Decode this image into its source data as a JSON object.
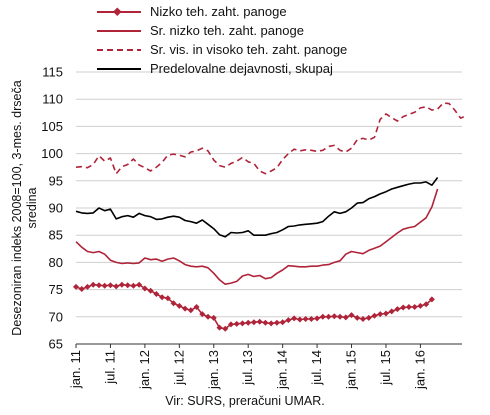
{
  "chart_data": {
    "type": "line",
    "ylabel": "Desezoniran indeks 2008=100, 3-mes. drseča sredina",
    "ylim": [
      65,
      115
    ],
    "yticks": [
      65,
      70,
      75,
      80,
      85,
      90,
      95,
      100,
      105,
      110,
      115
    ],
    "grid": "horizontal",
    "legend_position": "top",
    "x_tick_labels": [
      "jan. 11",
      "jul. 11",
      "jan. 12",
      "jul. 12",
      "jan. 13",
      "jul. 13",
      "jan. 14",
      "jul. 14",
      "jan. 15",
      "jul. 15",
      "jan. 16"
    ],
    "x_start": "jan. 11",
    "source": "Vir: SURS, preračuni UMAR.",
    "series": [
      {
        "name": "Nizko teh. zaht. panoge",
        "color": "#b0243a",
        "style": "solid-diamond",
        "values": [
          75.5,
          75.1,
          75.5,
          75.9,
          75.8,
          75.7,
          75.8,
          75.6,
          75.9,
          75.8,
          75.7,
          75.9,
          75.2,
          74.8,
          74.2,
          73.6,
          73.4,
          72.5,
          72.0,
          71.5,
          71.2,
          71.8,
          70.5,
          70.0,
          69.8,
          68.0,
          67.8,
          68.6,
          68.7,
          68.8,
          68.9,
          69.0,
          69.1,
          68.9,
          68.8,
          68.9,
          69.0,
          69.4,
          69.7,
          69.5,
          69.6,
          69.6,
          69.7,
          70.0,
          70.0,
          70.1,
          70.0,
          69.9,
          70.3,
          69.8,
          69.6,
          69.8,
          70.2,
          70.5,
          70.6,
          71.0,
          71.4,
          71.7,
          71.8,
          71.8,
          72.0,
          72.3,
          73.2
        ]
      },
      {
        "name": "Sr. nizko teh. zaht. panoge",
        "color": "#b0243a",
        "style": "solid",
        "values": [
          83.8,
          82.8,
          82.0,
          81.8,
          82.0,
          81.5,
          80.4,
          80.0,
          79.8,
          79.9,
          79.8,
          79.9,
          80.8,
          80.5,
          80.6,
          80.2,
          80.6,
          80.8,
          80.3,
          79.6,
          79.3,
          79.2,
          79.3,
          79.0,
          78.0,
          76.8,
          76.0,
          76.2,
          76.5,
          77.5,
          77.8,
          77.4,
          77.6,
          77.0,
          77.2,
          78.0,
          78.6,
          79.4,
          79.3,
          79.2,
          79.2,
          79.3,
          79.3,
          79.5,
          79.6,
          80.0,
          80.3,
          81.5,
          82.0,
          81.8,
          81.6,
          82.2,
          82.6,
          83.0,
          83.8,
          84.6,
          85.4,
          86.1,
          86.4,
          86.6,
          87.4,
          88.2,
          90.2,
          93.5
        ]
      },
      {
        "name": "Sr. vis. in visoko teh. zaht. panoge",
        "color": "#b0243a",
        "style": "dashed",
        "values": [
          97.5,
          97.6,
          97.4,
          98.0,
          99.6,
          98.6,
          99.2,
          96.3,
          97.6,
          98.0,
          99.0,
          97.9,
          97.4,
          96.8,
          97.5,
          98.4,
          99.7,
          99.9,
          99.7,
          99.4,
          100.3,
          100.5,
          101.0,
          100.5,
          98.8,
          97.8,
          97.5,
          98.2,
          98.6,
          99.3,
          98.5,
          98.2,
          96.8,
          96.3,
          96.8,
          97.4,
          98.9,
          100.0,
          100.8,
          100.5,
          100.7,
          100.6,
          100.4,
          100.6,
          101.3,
          101.5,
          100.6,
          100.3,
          101.0,
          102.6,
          102.8,
          102.5,
          103.0,
          106.3,
          107.3,
          106.6,
          106.0,
          106.8,
          107.2,
          107.6,
          108.4,
          108.6,
          108.0,
          108.2,
          109.3,
          109.2,
          108.0,
          106.5,
          107.0
        ]
      },
      {
        "name": "Predelovalne dejavnosti, skupaj",
        "color": "#000000",
        "style": "solid",
        "values": [
          89.4,
          89.1,
          89.0,
          89.1,
          90.0,
          89.5,
          89.8,
          88.0,
          88.4,
          88.6,
          88.3,
          89.0,
          88.6,
          88.4,
          87.9,
          88.0,
          88.3,
          88.5,
          88.3,
          87.7,
          87.5,
          87.2,
          87.8,
          87.0,
          86.2,
          85.1,
          84.7,
          85.5,
          85.4,
          85.5,
          85.8,
          85.0,
          85.0,
          85.0,
          85.3,
          85.5,
          86.0,
          86.6,
          86.7,
          86.9,
          87.0,
          87.1,
          87.2,
          87.5,
          88.5,
          89.3,
          89.0,
          89.3,
          90.0,
          90.9,
          91.0,
          91.7,
          92.1,
          92.6,
          93.0,
          93.5,
          93.8,
          94.1,
          94.4,
          94.6,
          94.6,
          94.8,
          94.2,
          95.6
        ]
      }
    ]
  }
}
